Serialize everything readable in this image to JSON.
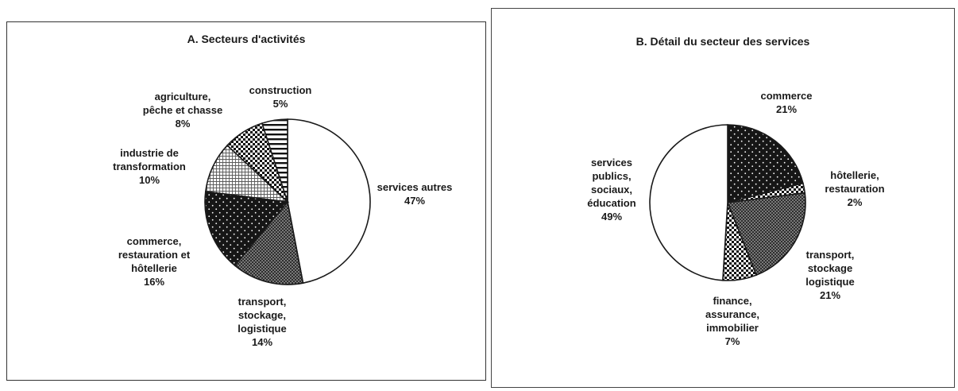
{
  "chart_data": [
    {
      "type": "pie",
      "title": "A. Secteurs d'activités",
      "slices": [
        {
          "label": [
            "services autres"
          ],
          "value": 47,
          "pct": "47%",
          "pattern": "white"
        },
        {
          "label": [
            "transport,",
            "stockage,",
            "logistique"
          ],
          "value": 14,
          "pct": "14%",
          "pattern": "cross-hatch"
        },
        {
          "label": [
            "commerce,",
            "restauration et",
            "hôtellerie"
          ],
          "value": 16,
          "pct": "16%",
          "pattern": "dark-dots"
        },
        {
          "label": [
            "industrie de",
            "transformation"
          ],
          "value": 10,
          "pct": "10%",
          "pattern": "grid"
        },
        {
          "label": [
            "agriculture,",
            "pêche et chasse"
          ],
          "value": 8,
          "pct": "8%",
          "pattern": "checker"
        },
        {
          "label": [
            "construction"
          ],
          "value": 5,
          "pct": "5%",
          "pattern": "horizontal-stripes"
        }
      ]
    },
    {
      "type": "pie",
      "title": "B. Détail du secteur des services",
      "slices": [
        {
          "label": [
            "commerce"
          ],
          "value": 21,
          "pct": "21%",
          "pattern": "dark-dots"
        },
        {
          "label": [
            "hôtellerie,",
            "restauration"
          ],
          "value": 2,
          "pct": "2%",
          "pattern": "checker"
        },
        {
          "label": [
            "transport,",
            "stockage",
            "logistique"
          ],
          "value": 21,
          "pct": "21%",
          "pattern": "cross-hatch"
        },
        {
          "label": [
            "finance,",
            "assurance,",
            "immobilier"
          ],
          "value": 7,
          "pct": "7%",
          "pattern": "checker"
        },
        {
          "label": [
            "services",
            "publics,",
            "sociaux,",
            "éducation"
          ],
          "value": 49,
          "pct": "49%",
          "pattern": "white"
        }
      ]
    }
  ]
}
